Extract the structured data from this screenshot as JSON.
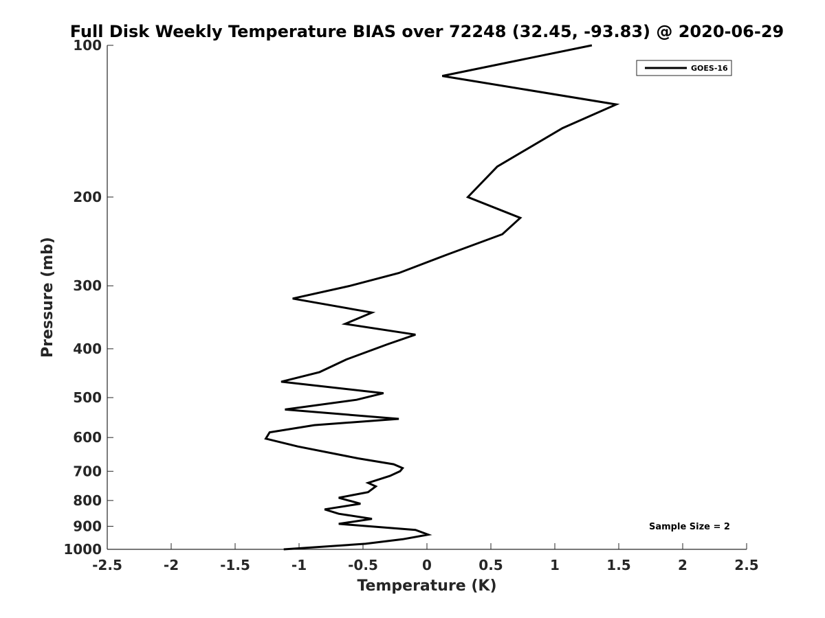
{
  "chart_data": {
    "type": "line",
    "title": "Full Disk Weekly Temperature BIAS over 72248 (32.45, -93.83) @ 2020-06-29",
    "xlabel": "Temperature (K)",
    "ylabel": "Pressure (mb)",
    "xlim": [
      -2.5,
      2.5
    ],
    "ylim": [
      1000,
      100
    ],
    "y_scale": "log",
    "y_reversed": true,
    "x_ticks": [
      -2.5,
      -2,
      -1.5,
      -1,
      -0.5,
      0,
      0.5,
      1,
      1.5,
      2,
      2.5
    ],
    "x_tick_labels": [
      "-2.5",
      "-2",
      "-1.5",
      "-1",
      "-0.5",
      "0",
      "0.5",
      "1",
      "1.5",
      "2",
      "2.5"
    ],
    "y_ticks": [
      100,
      200,
      300,
      400,
      500,
      600,
      700,
      800,
      900,
      1000
    ],
    "y_tick_labels": [
      "100",
      "200",
      "300",
      "400",
      "500",
      "600",
      "700",
      "800",
      "900",
      "1000"
    ],
    "grid": false,
    "legend_position": "top-right",
    "series": [
      {
        "name": "GOES-16",
        "color": "#000000",
        "x": [
          1.29,
          0.12,
          1.48,
          1.06,
          0.55,
          0.32,
          0.73,
          0.59,
          0.16,
          -0.22,
          -0.6,
          -1.05,
          -0.43,
          -0.64,
          -0.09,
          -0.31,
          -0.63,
          -0.84,
          -1.14,
          -0.34,
          -0.55,
          -1.11,
          -0.22,
          -0.88,
          -1.23,
          -1.26,
          -1.01,
          -0.54,
          -0.26,
          -0.19,
          -0.21,
          -0.29,
          -0.46,
          -0.4,
          -0.46,
          -0.69,
          -0.52,
          -0.8,
          -0.69,
          -0.43,
          -0.69,
          -0.09,
          0.01,
          -0.19,
          -0.48,
          -1.12
        ],
        "y": [
          100,
          115,
          131,
          146,
          174,
          200,
          220,
          237,
          260,
          283,
          300,
          318,
          339,
          357,
          375,
          392,
          420,
          445,
          465,
          490,
          505,
          528,
          551,
          567,
          586,
          603,
          625,
          660,
          678,
          690,
          700,
          715,
          738,
          750,
          770,
          790,
          812,
          833,
          850,
          870,
          890,
          915,
          935,
          955,
          975,
          1000
        ]
      }
    ],
    "annotations": [
      "Sample Size = 2"
    ]
  }
}
